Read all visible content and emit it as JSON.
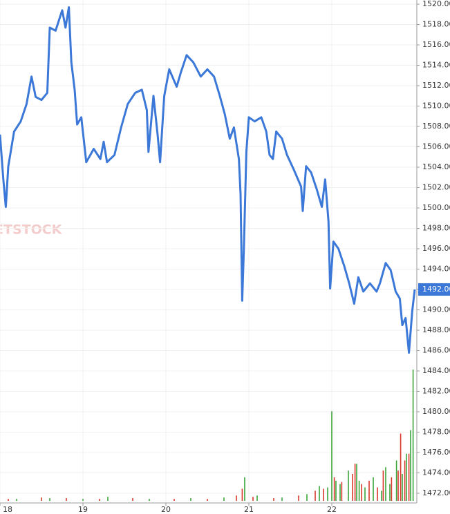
{
  "chart_data": [
    {
      "type": "line",
      "watermark": "ETSTOCK",
      "color": "#3b78d8",
      "grid": true,
      "last_price": {
        "value": 1492,
        "label": "1492.00"
      },
      "xlim": [
        18,
        23.025
      ],
      "xticks": [
        18,
        19,
        20,
        21,
        22
      ],
      "ylim": [
        1471.05,
        1520.41
      ],
      "yticks": [
        {
          "value": 1472,
          "label": "1472.00"
        },
        {
          "value": 1474,
          "label": "1474.00"
        },
        {
          "value": 1476,
          "label": "1476.00"
        },
        {
          "value": 1478,
          "label": "1478.00"
        },
        {
          "value": 1480,
          "label": "1480.00"
        },
        {
          "value": 1482,
          "label": "1482.00"
        },
        {
          "value": 1484,
          "label": "1484.00"
        },
        {
          "value": 1486,
          "label": "1486.00"
        },
        {
          "value": 1488,
          "label": "1488.00"
        },
        {
          "value": 1490,
          "label": "1490.00"
        },
        {
          "value": 1492,
          "label": "1492.00"
        },
        {
          "value": 1494,
          "label": "1494.00"
        },
        {
          "value": 1496,
          "label": "1496.00"
        },
        {
          "value": 1498,
          "label": "1498.00"
        },
        {
          "value": 1500,
          "label": "1500.00"
        },
        {
          "value": 1502,
          "label": "1502.00"
        },
        {
          "value": 1504,
          "label": "1504.00"
        },
        {
          "value": 1506,
          "label": "1506.00"
        },
        {
          "value": 1508,
          "label": "1508.00"
        },
        {
          "value": 1510,
          "label": "1510.00"
        },
        {
          "value": 1512,
          "label": "1512.00"
        },
        {
          "value": 1514,
          "label": "1514.00"
        },
        {
          "value": 1516,
          "label": "1516.00"
        },
        {
          "value": 1518,
          "label": "1518.00"
        },
        {
          "value": 1520,
          "label": "1520.00"
        }
      ],
      "x": [
        18.0,
        18.04,
        18.07,
        18.1,
        18.17,
        18.25,
        18.32,
        18.38,
        18.43,
        18.5,
        18.57,
        18.6,
        18.67,
        18.71,
        18.75,
        18.79,
        18.83,
        18.86,
        18.9,
        18.93,
        18.98,
        19.04,
        19.13,
        19.21,
        19.25,
        19.29,
        19.38,
        19.46,
        19.54,
        19.63,
        19.71,
        19.77,
        19.79,
        19.85,
        19.9,
        19.93,
        19.98,
        20.04,
        20.13,
        20.18,
        20.25,
        20.33,
        20.42,
        20.5,
        20.58,
        20.65,
        20.71,
        20.77,
        20.82,
        20.88,
        20.9,
        20.92,
        20.94,
        20.97,
        21.0,
        21.07,
        21.15,
        21.21,
        21.25,
        21.29,
        21.33,
        21.4,
        21.46,
        21.54,
        21.63,
        21.65,
        21.69,
        21.75,
        21.82,
        21.88,
        21.92,
        21.96,
        21.98,
        22.02,
        22.08,
        22.15,
        22.21,
        22.27,
        22.32,
        22.38,
        22.46,
        22.54,
        22.58,
        22.65,
        22.71,
        22.77,
        22.82,
        22.85,
        22.89,
        22.93,
        22.97,
        23.0
      ],
      "values": [
        1507.2,
        1502.8,
        1500.1,
        1504.1,
        1507.5,
        1508.5,
        1510.2,
        1512.9,
        1510.9,
        1510.6,
        1511.3,
        1517.7,
        1517.4,
        1518.4,
        1519.4,
        1517.7,
        1519.7,
        1514.3,
        1511.6,
        1508.2,
        1508.9,
        1504.5,
        1505.8,
        1504.8,
        1506.5,
        1504.5,
        1505.2,
        1507.9,
        1510.2,
        1511.3,
        1511.6,
        1509.6,
        1505.5,
        1511.0,
        1507.2,
        1504.5,
        1511.0,
        1513.6,
        1511.9,
        1513.3,
        1515.0,
        1514.3,
        1512.9,
        1513.6,
        1512.9,
        1511.0,
        1509.2,
        1506.8,
        1507.9,
        1504.8,
        1501.4,
        1490.9,
        1496.0,
        1505.5,
        1508.9,
        1508.5,
        1508.9,
        1507.5,
        1505.2,
        1504.8,
        1507.5,
        1506.8,
        1505.2,
        1503.8,
        1502.1,
        1499.7,
        1504.1,
        1503.5,
        1501.8,
        1500.1,
        1502.8,
        1498.7,
        1492.1,
        1496.7,
        1496.0,
        1494.3,
        1492.6,
        1490.6,
        1493.2,
        1491.8,
        1492.6,
        1491.8,
        1492.6,
        1494.6,
        1493.9,
        1491.8,
        1491.1,
        1488.5,
        1489.2,
        1485.8,
        1489.9,
        1492.0
      ]
    },
    {
      "type": "bar",
      "ylim": [
        0,
        200
      ],
      "series": [
        {
          "color": "#3aa53a",
          "x": [
            18.2,
            18.6,
            19.0,
            19.3,
            19.8,
            20.3,
            20.7,
            20.95,
            21.1,
            21.4,
            21.7,
            21.85,
            21.95,
            22.0,
            22.05,
            22.1,
            22.2,
            22.3,
            22.33,
            22.4,
            22.5,
            22.6,
            22.65,
            22.7,
            22.78,
            22.85,
            22.9,
            22.95,
            22.98
          ],
          "values": [
            3,
            4,
            3,
            6,
            3,
            4,
            5,
            35,
            8,
            5,
            10,
            22,
            20,
            133,
            30,
            25,
            45,
            55,
            30,
            20,
            35,
            15,
            50,
            25,
            60,
            40,
            70,
            105,
            195
          ]
        },
        {
          "color": "#d9382c",
          "x": [
            18.1,
            18.5,
            18.8,
            19.2,
            19.6,
            20.1,
            20.5,
            20.85,
            20.92,
            21.05,
            21.3,
            21.6,
            21.8,
            21.9,
            22.03,
            22.12,
            22.25,
            22.28,
            22.36,
            22.45,
            22.55,
            22.62,
            22.72,
            22.8,
            22.83,
            22.88,
            22.93
          ],
          "values": [
            3,
            5,
            4,
            3,
            4,
            3,
            3,
            8,
            18,
            6,
            4,
            8,
            15,
            18,
            35,
            28,
            40,
            55,
            25,
            30,
            20,
            45,
            35,
            45,
            100,
            60,
            70
          ]
        }
      ]
    }
  ]
}
